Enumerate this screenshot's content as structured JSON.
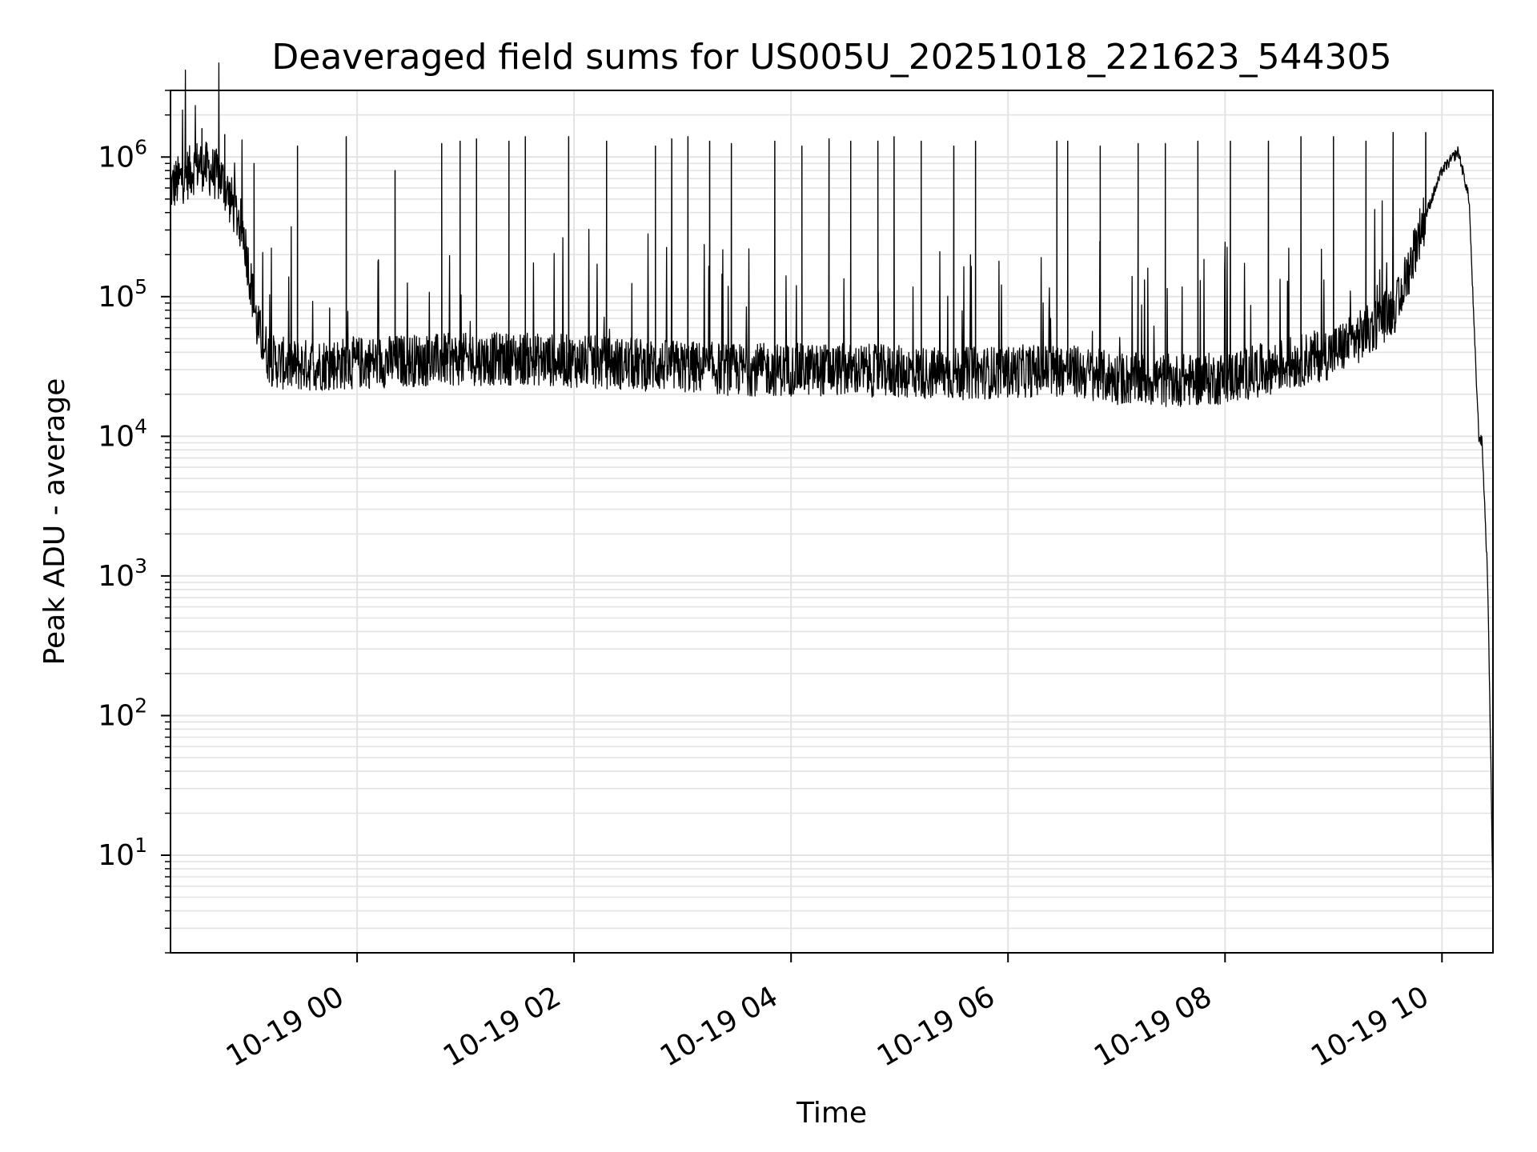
{
  "chart_data": {
    "type": "line",
    "title": "Deaveraged field sums for US005U_20251018_221623_544305",
    "xlabel": "Time",
    "ylabel": "Peak ADU - average",
    "yscale": "log",
    "ylim": [
      2,
      3000000
    ],
    "xlim_hours": [
      -1.72,
      10.47
    ],
    "grid": true,
    "line_color": "#000000",
    "grid_color": "#e3e3e3",
    "x_ticks": [
      {
        "label": "10-19 00",
        "hour": 0
      },
      {
        "label": "10-19 02",
        "hour": 2
      },
      {
        "label": "10-19 04",
        "hour": 4
      },
      {
        "label": "10-19 06",
        "hour": 6
      },
      {
        "label": "10-19 08",
        "hour": 8
      },
      {
        "label": "10-19 10",
        "hour": 10
      }
    ],
    "y_ticks": [
      {
        "base": "10",
        "exp": "1",
        "value": 10
      },
      {
        "base": "10",
        "exp": "2",
        "value": 100
      },
      {
        "base": "10",
        "exp": "3",
        "value": 1000
      },
      {
        "base": "10",
        "exp": "4",
        "value": 10000
      },
      {
        "base": "10",
        "exp": "5",
        "value": 100000
      },
      {
        "base": "10",
        "exp": "6",
        "value": 1000000
      }
    ],
    "series": [
      {
        "name": "deaveraged field sum",
        "baseline_hours": [
          -1.72,
          -1.45,
          -1.25,
          -1.05,
          -0.92,
          -0.8,
          -0.6,
          -0.2,
          0.5,
          1.5,
          2.5,
          3.5,
          4.5,
          5.5,
          6.5,
          7.0,
          7.5,
          8.0,
          8.5,
          9.0,
          9.3,
          9.6,
          9.8,
          10.0,
          10.15,
          10.25,
          10.3,
          10.34,
          10.37,
          10.42,
          10.45,
          10.47
        ],
        "baseline_values": [
          600000,
          900000,
          700000,
          300000,
          60000,
          35000,
          32000,
          33000,
          35000,
          36000,
          33000,
          30000,
          30000,
          28000,
          30000,
          26000,
          25000,
          26000,
          32000,
          40000,
          55000,
          90000,
          300000,
          800000,
          1100000,
          500000,
          50000,
          10000,
          9000,
          1000,
          50,
          4
        ],
        "spike_hours": [
          -1.43,
          -1.22,
          -0.95,
          -0.55,
          -0.1,
          0.35,
          0.78,
          0.95,
          1.1,
          1.4,
          1.55,
          1.95,
          2.3,
          2.75,
          2.9,
          3.05,
          3.25,
          3.45,
          3.85,
          4.1,
          4.35,
          4.55,
          4.8,
          4.95,
          5.2,
          5.5,
          5.7,
          6.45,
          6.55,
          6.85,
          7.2,
          7.45,
          7.75,
          8.05,
          8.4,
          8.7,
          9.0,
          9.3,
          9.55,
          9.85
        ],
        "spike_values": [
          1600000,
          1450000,
          900000,
          1200000,
          1400000,
          800000,
          1250000,
          1300000,
          1350000,
          1300000,
          1400000,
          1400000,
          1300000,
          1200000,
          1350000,
          1400000,
          1300000,
          1250000,
          1300000,
          1200000,
          1350000,
          1300000,
          1300000,
          1400000,
          1300000,
          1200000,
          1300000,
          1300000,
          1300000,
          1200000,
          1250000,
          1250000,
          1300000,
          1300000,
          1300000,
          1400000,
          1400000,
          1300000,
          1500000,
          1500000
        ]
      }
    ]
  }
}
